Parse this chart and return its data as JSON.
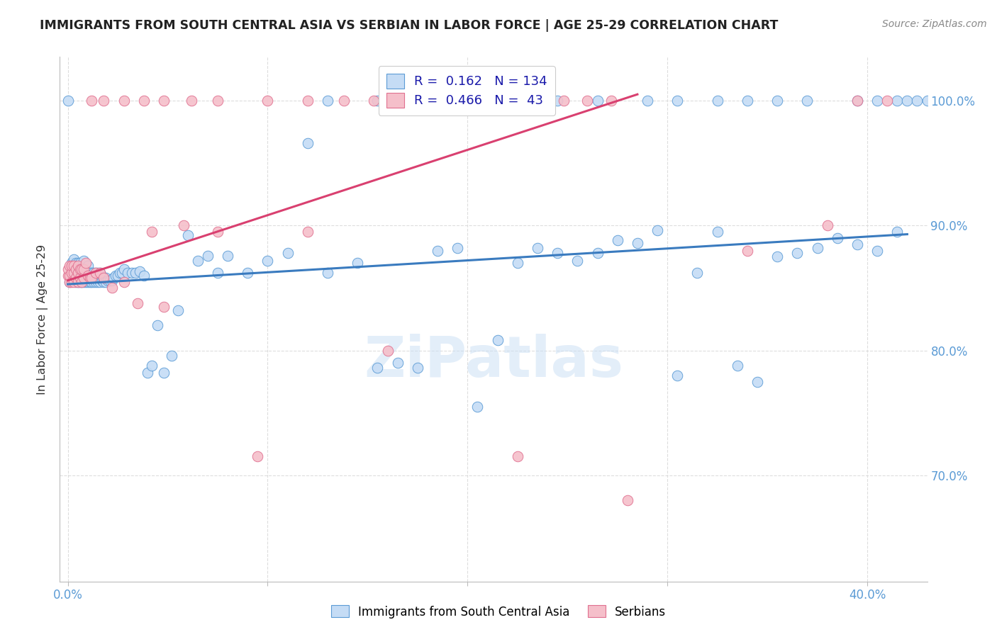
{
  "title": "IMMIGRANTS FROM SOUTH CENTRAL ASIA VS SERBIAN IN LABOR FORCE | AGE 25-29 CORRELATION CHART",
  "source": "Source: ZipAtlas.com",
  "ylabel": "In Labor Force | Age 25-29",
  "legend_R_blue": "0.162",
  "legend_N_blue": "134",
  "legend_R_pink": "0.466",
  "legend_N_pink": "43",
  "blue_fill": "#c5dcf5",
  "blue_edge": "#5b9bd5",
  "pink_fill": "#f5bfca",
  "pink_edge": "#e07090",
  "blue_line": "#3a7bbf",
  "pink_line": "#d94070",
  "watermark": "ZiPatlas",
  "bg_color": "#ffffff",
  "grid_color": "#dddddd",
  "tick_color": "#5b9bd5",
  "title_color": "#222222",
  "legend_text_color": "#1a1aaa",
  "ylabel_color": "#333333",
  "xlim": [
    -0.004,
    0.43
  ],
  "ylim": [
    0.615,
    1.035
  ],
  "x_ticks": [
    0.0,
    0.1,
    0.2,
    0.3,
    0.4
  ],
  "x_tick_labels": [
    "0.0%",
    "",
    "",
    "",
    "40.0%"
  ],
  "y_ticks": [
    0.7,
    0.8,
    0.9,
    1.0
  ],
  "y_tick_labels": [
    "70.0%",
    "80.0%",
    "90.0%",
    "100.0%"
  ],
  "blue_line_x": [
    0.0,
    0.42
  ],
  "blue_line_y": [
    0.853,
    0.893
  ],
  "pink_line_x": [
    0.0,
    0.285
  ],
  "pink_line_y": [
    0.856,
    1.005
  ],
  "blue_x": [
    0.001,
    0.002,
    0.002,
    0.003,
    0.003,
    0.003,
    0.004,
    0.004,
    0.004,
    0.005,
    0.005,
    0.005,
    0.005,
    0.006,
    0.006,
    0.006,
    0.006,
    0.007,
    0.007,
    0.007,
    0.008,
    0.008,
    0.008,
    0.008,
    0.009,
    0.009,
    0.01,
    0.01,
    0.01,
    0.011,
    0.011,
    0.012,
    0.012,
    0.013,
    0.013,
    0.014,
    0.014,
    0.015,
    0.015,
    0.016,
    0.016,
    0.017,
    0.018,
    0.018,
    0.019,
    0.019,
    0.02,
    0.021,
    0.022,
    0.023,
    0.024,
    0.025,
    0.026,
    0.027,
    0.028,
    0.03,
    0.032,
    0.034,
    0.036,
    0.038,
    0.04,
    0.042,
    0.045,
    0.048,
    0.052,
    0.055,
    0.06,
    0.065,
    0.07,
    0.075,
    0.08,
    0.09,
    0.1,
    0.11,
    0.12,
    0.13,
    0.145,
    0.155,
    0.165,
    0.175,
    0.185,
    0.195,
    0.205,
    0.215,
    0.225,
    0.235,
    0.245,
    0.255,
    0.265,
    0.275,
    0.285,
    0.295,
    0.305,
    0.315,
    0.325,
    0.335,
    0.345,
    0.355,
    0.365,
    0.375,
    0.385,
    0.395,
    0.405,
    0.415,
    0.42,
    0.422,
    0.424,
    0.425,
    0.426,
    0.428,
    0.429,
    0.43,
    0.431,
    0.432,
    0.433,
    0.434,
    0.435,
    0.436,
    0.437,
    0.438,
    0.439,
    0.44,
    0.441,
    0.442,
    0.443,
    0.444,
    0.445,
    0.446,
    0.447,
    0.448,
    0.449,
    0.45,
    0.451,
    0.452
  ],
  "blue_y": [
    0.855,
    0.863,
    0.87,
    0.858,
    0.865,
    0.873,
    0.855,
    0.863,
    0.87,
    0.855,
    0.858,
    0.863,
    0.87,
    0.855,
    0.858,
    0.863,
    0.87,
    0.855,
    0.86,
    0.868,
    0.855,
    0.86,
    0.865,
    0.872,
    0.855,
    0.862,
    0.855,
    0.86,
    0.868,
    0.855,
    0.862,
    0.855,
    0.862,
    0.855,
    0.862,
    0.855,
    0.862,
    0.855,
    0.862,
    0.855,
    0.862,
    0.856,
    0.857,
    0.855,
    0.858,
    0.855,
    0.856,
    0.856,
    0.856,
    0.858,
    0.86,
    0.86,
    0.862,
    0.862,
    0.865,
    0.862,
    0.862,
    0.862,
    0.863,
    0.86,
    0.782,
    0.788,
    0.82,
    0.782,
    0.796,
    0.832,
    0.892,
    0.872,
    0.876,
    0.862,
    0.876,
    0.862,
    0.872,
    0.878,
    0.966,
    0.862,
    0.87,
    0.786,
    0.79,
    0.786,
    0.88,
    0.882,
    0.755,
    0.808,
    0.87,
    0.882,
    0.878,
    0.872,
    0.878,
    0.888,
    0.886,
    0.896,
    0.78,
    0.862,
    0.895,
    0.788,
    0.775,
    0.875,
    0.878,
    0.882,
    0.89,
    0.885,
    0.88,
    0.895,
    1.0,
    1.0,
    1.0,
    1.0,
    1.0,
    1.0,
    1.0,
    1.0,
    1.0,
    1.0,
    1.0,
    1.0,
    1.0,
    1.0,
    1.0,
    1.0,
    1.0,
    1.0,
    1.0,
    1.0,
    1.0,
    1.0,
    1.0,
    1.0,
    1.0,
    1.0,
    1.0,
    1.0,
    1.0,
    1.0
  ],
  "pink_x": [
    0.0,
    0.0,
    0.001,
    0.001,
    0.001,
    0.002,
    0.002,
    0.002,
    0.003,
    0.003,
    0.003,
    0.004,
    0.004,
    0.005,
    0.005,
    0.005,
    0.006,
    0.006,
    0.007,
    0.007,
    0.008,
    0.008,
    0.009,
    0.01,
    0.011,
    0.012,
    0.014,
    0.016,
    0.018,
    0.022,
    0.028,
    0.035,
    0.042,
    0.048,
    0.058,
    0.075,
    0.095,
    0.12,
    0.16,
    0.225,
    0.28,
    0.34,
    0.38
  ],
  "pink_y": [
    0.86,
    0.865,
    0.855,
    0.86,
    0.868,
    0.855,
    0.862,
    0.868,
    0.855,
    0.862,
    0.868,
    0.858,
    0.865,
    0.855,
    0.862,
    0.868,
    0.858,
    0.865,
    0.855,
    0.865,
    0.858,
    0.865,
    0.87,
    0.86,
    0.858,
    0.858,
    0.862,
    0.862,
    0.858,
    0.85,
    0.855,
    0.838,
    0.895,
    0.835,
    0.9,
    0.895,
    0.715,
    0.895,
    0.8,
    0.715,
    0.68,
    0.88,
    0.9
  ]
}
